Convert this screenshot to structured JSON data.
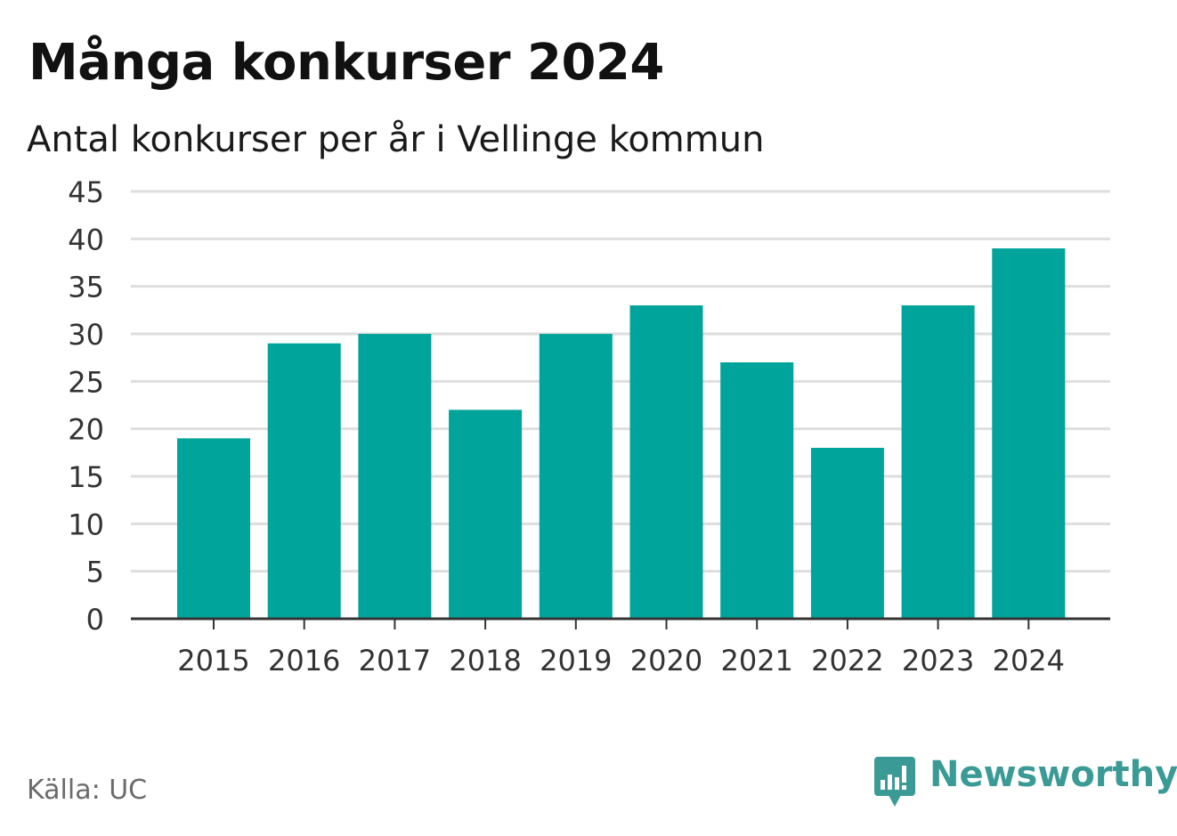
{
  "colors": {
    "bar": "#00a49a",
    "grid": "#dedede",
    "axis": "#333333",
    "brand": "#3a9a96",
    "source_text": "#6b6b6b"
  },
  "chart_data": {
    "type": "bar",
    "title": "Många konkurser 2024",
    "subtitle": "Antal konkurser per år i Vellinge kommun",
    "categories": [
      "2015",
      "2016",
      "2017",
      "2018",
      "2019",
      "2020",
      "2021",
      "2022",
      "2023",
      "2024"
    ],
    "values": [
      19,
      29,
      30,
      22,
      30,
      33,
      27,
      18,
      33,
      39
    ],
    "ylim": [
      0,
      45
    ],
    "yticks": [
      0,
      5,
      10,
      15,
      20,
      25,
      30,
      35,
      40,
      45
    ],
    "xlabel": "",
    "ylabel": "",
    "grid": true,
    "legend": "none"
  },
  "footer": {
    "source": "Källa: UC",
    "brand": "Newsworthy",
    "brand_icon": "newsworthy-logo-icon"
  }
}
